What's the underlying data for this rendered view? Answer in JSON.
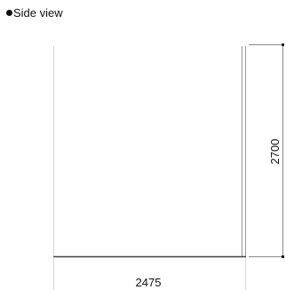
{
  "view": {
    "title": "Side view"
  },
  "dimensions": {
    "width": "2475",
    "height": "2700"
  },
  "colors": {
    "outline": "#9a9a9a",
    "base": "#444444",
    "dimension_line": "#8a8a8a",
    "dot": "#111111"
  }
}
